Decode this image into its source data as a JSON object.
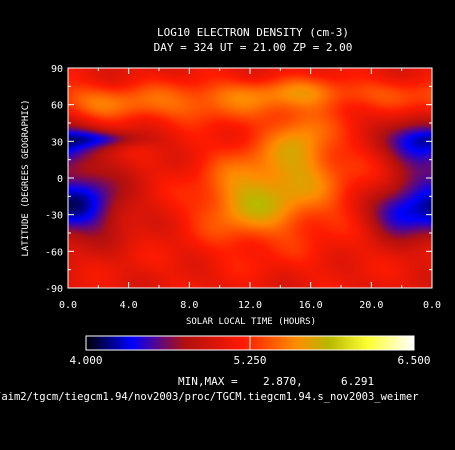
{
  "chart_data": {
    "type": "heatmap",
    "title": "LOG10 ELECTRON DENSITY (cm-3)",
    "subtitle": "DAY = 324  UT = 21.00  ZP =    2.00",
    "xlabel": "SOLAR LOCAL TIME (HOURS)",
    "ylabel": "LATITUDE (DEGREES GEOGRAPHIC)",
    "xlim": [
      0,
      24
    ],
    "ylim": [
      -90,
      90
    ],
    "x_ticks": [
      "0.0",
      "4.0",
      "8.0",
      "12.0",
      "16.0",
      "20.0",
      "0.0"
    ],
    "x_tick_values": [
      0,
      4,
      8,
      12,
      16,
      20,
      24
    ],
    "y_ticks": [
      "90",
      "60",
      "30",
      "0",
      "-30",
      "-60",
      "-90"
    ],
    "y_tick_values": [
      90,
      60,
      30,
      0,
      -30,
      -60,
      -90
    ],
    "colorbar": {
      "range": [
        4.0,
        6.5
      ],
      "labels": [
        "4.000",
        "5.250",
        "6.500"
      ],
      "stops": [
        {
          "v": 4.0,
          "color": "#000000"
        },
        {
          "v": 4.35,
          "color": "#0000ff"
        },
        {
          "v": 4.75,
          "color": "#b01010"
        },
        {
          "v": 5.2,
          "color": "#ff1a00"
        },
        {
          "v": 5.6,
          "color": "#ff8c00"
        },
        {
          "v": 5.85,
          "color": "#b8b800"
        },
        {
          "v": 6.15,
          "color": "#ffff33"
        },
        {
          "v": 6.5,
          "color": "#ffffff"
        }
      ]
    },
    "min_max_label": "MIN,MAX =",
    "min_value": "2.870,",
    "max_value": "6.291",
    "features": [
      {
        "x": 14.2,
        "y": -4,
        "sx": 3.4,
        "sy": 30,
        "a": 0.55
      },
      {
        "x": 15.5,
        "y": 35,
        "sx": 1.4,
        "sy": 20,
        "a": 0.35
      },
      {
        "x": 11.5,
        "y": -25,
        "sx": 2.2,
        "sy": 20,
        "a": 0.35
      },
      {
        "x": 15.0,
        "y": 70,
        "sx": 6.0,
        "sy": 9,
        "a": 0.4
      },
      {
        "x": 7.5,
        "y": 58,
        "sx": 4.5,
        "sy": 10,
        "a": 0.3
      },
      {
        "x": 2.0,
        "y": 62,
        "sx": 2.5,
        "sy": 10,
        "a": 0.25
      },
      {
        "x": 1.0,
        "y": -20,
        "sx": 1.8,
        "sy": 20,
        "a": -0.75
      },
      {
        "x": 2.5,
        "y": 32,
        "sx": 2.0,
        "sy": 5,
        "a": -0.45
      },
      {
        "x": 23.2,
        "y": 28,
        "sx": 1.6,
        "sy": 13,
        "a": -0.8
      },
      {
        "x": 21.8,
        "y": -28,
        "sx": 1.5,
        "sy": 14,
        "a": -0.65
      },
      {
        "x": 12.0,
        "y": -70,
        "sx": 8.0,
        "sy": 12,
        "a": 0.05
      }
    ],
    "background_value": 5.05
  },
  "footer": {
    "path": "/aim2/tgcm/tiegcm1.94/nov2003/proc/TGCM.tiegcm1.94.s_nov2003_weimer"
  }
}
